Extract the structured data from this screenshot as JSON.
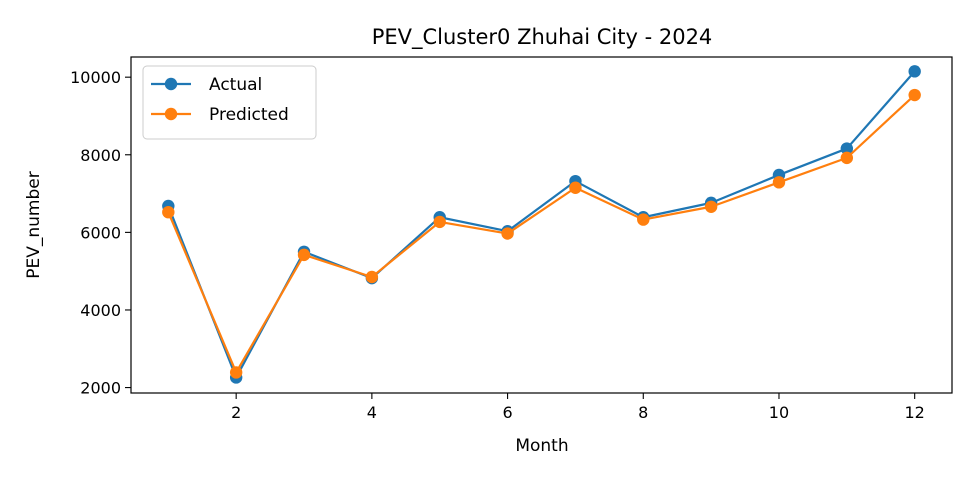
{
  "chart_data": {
    "type": "line",
    "title": "PEV_Cluster0 Zhuhai City - 2024",
    "xlabel": "Month",
    "ylabel": "PEV_number",
    "x": [
      1,
      2,
      3,
      4,
      5,
      6,
      7,
      8,
      9,
      10,
      11,
      12
    ],
    "xlim": [
      0.45,
      12.55
    ],
    "ylim": [
      1860,
      10520
    ],
    "xticks": [
      2,
      4,
      6,
      8,
      10,
      12
    ],
    "yticks": [
      2000,
      4000,
      6000,
      8000,
      10000
    ],
    "grid": false,
    "legend_position": "top-left",
    "series": [
      {
        "name": "Actual",
        "color": "#1f77b4",
        "marker": "circle",
        "values": [
          6680,
          2260,
          5500,
          4820,
          6390,
          6030,
          7320,
          6390,
          6760,
          7480,
          8160,
          10150
        ]
      },
      {
        "name": "Predicted",
        "color": "#ff7f0e",
        "marker": "circle",
        "values": [
          6520,
          2390,
          5420,
          4850,
          6270,
          5970,
          7150,
          6330,
          6660,
          7290,
          7920,
          9540
        ]
      }
    ]
  }
}
